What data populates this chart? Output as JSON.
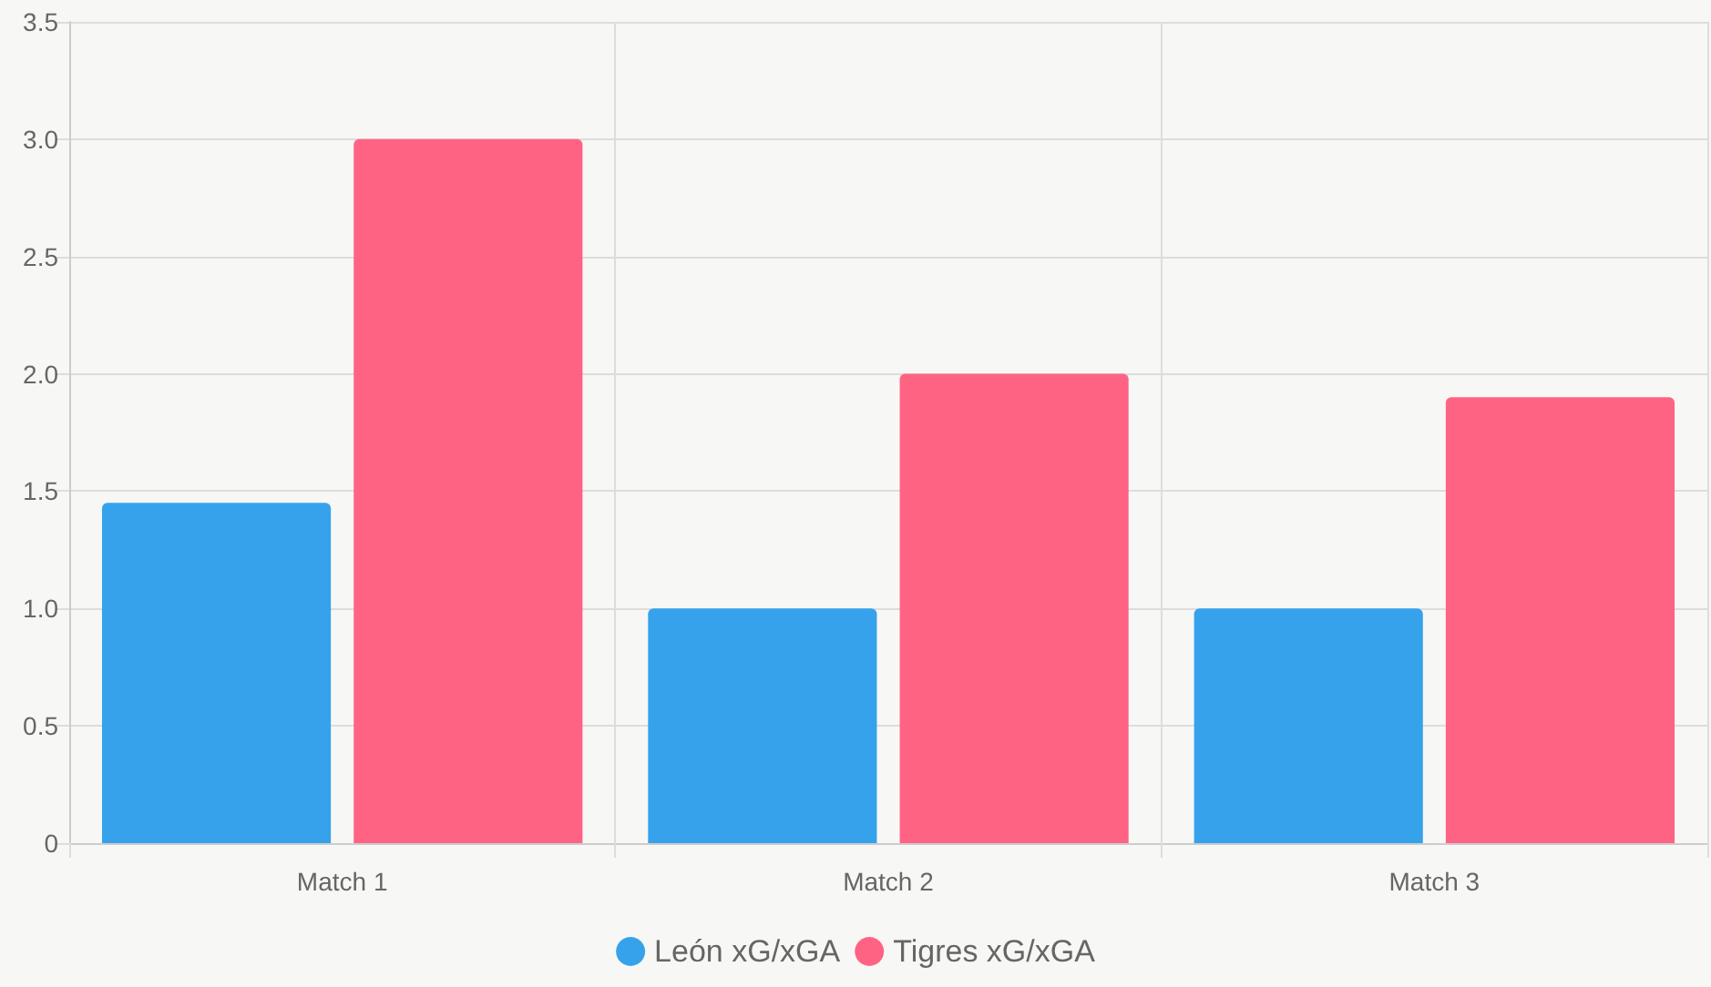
{
  "chart_data": {
    "type": "bar",
    "categories": [
      "Match 1",
      "Match 2",
      "Match 3"
    ],
    "series": [
      {
        "name": "León xG/xGA",
        "color": "#36a2eb",
        "values": [
          1.45,
          1.0,
          1.0
        ]
      },
      {
        "name": "Tigres xG/xGA",
        "color": "#ff6384",
        "values": [
          3.0,
          2.0,
          1.9
        ]
      }
    ],
    "ylim": [
      0,
      3.5
    ],
    "yticks": [
      0,
      0.5,
      {
        "value": 1,
        "label": "1.0"
      },
      1.5,
      {
        "value": 2,
        "label": "2.0"
      },
      2.5,
      {
        "value": 3,
        "label": "3.0"
      },
      3.5
    ],
    "grid": true,
    "legend": "bottom"
  }
}
